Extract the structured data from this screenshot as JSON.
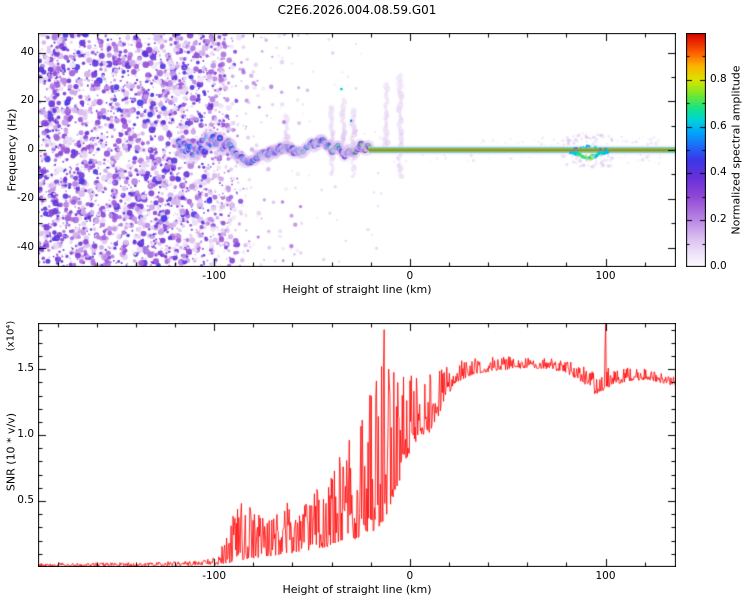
{
  "figure": {
    "title": "C2E6.2026.004.08.59.G01",
    "background": "#ffffff"
  },
  "chart_data": [
    {
      "type": "heatmap",
      "title": "C2E6.2026.004.08.59.G01",
      "xlabel": "Height of straight line (km)",
      "ylabel": "Frequency (Hz)",
      "xlim": [
        -190,
        136
      ],
      "ylim": [
        -48,
        48
      ],
      "xticks": [
        -100,
        0,
        100
      ],
      "x_minor_step": 20,
      "yticks": [
        -40,
        -20,
        0,
        20,
        40
      ],
      "y_minor_step": 10,
      "colorbar": {
        "label": "Normalized spectral amplitude",
        "ticks": [
          "0.0",
          "0.2",
          "0.4",
          "0.6",
          "0.8"
        ],
        "tick_values": [
          0,
          0.2,
          0.4,
          0.6,
          0.8
        ],
        "range": [
          0,
          1
        ]
      },
      "colormap_stops": [
        [
          0,
          252,
          250,
          254
        ],
        [
          0.05,
          240,
          230,
          249
        ],
        [
          0.12,
          219,
          192,
          240
        ],
        [
          0.2,
          186,
          135,
          228
        ],
        [
          0.3,
          144,
          72,
          214
        ],
        [
          0.38,
          104,
          48,
          216
        ],
        [
          0.46,
          58,
          56,
          232
        ],
        [
          0.52,
          28,
          110,
          248
        ],
        [
          0.58,
          0,
          170,
          250
        ],
        [
          0.63,
          0,
          212,
          216
        ],
        [
          0.68,
          24,
          228,
          132
        ],
        [
          0.74,
          120,
          232,
          40
        ],
        [
          0.8,
          220,
          228,
          0
        ],
        [
          0.86,
          252,
          180,
          0
        ],
        [
          0.92,
          252,
          92,
          0
        ],
        [
          1,
          216,
          0,
          0
        ]
      ],
      "content": {
        "description": "Radio-occultation sliding spectrogram: broadband purple speckle noise fills all frequencies for heights below about -100 km, a wandering blue/cyan/green carrier trace near 0 Hz runs from about -115 km to -20 km, and a locked narrow signal line (red core with green sidebands and purple fringe) sits at 0 Hz from -20 km to the right edge, with a small green/yellow disturbance near 82-100 km and faint purple plumes above the trace.",
        "noise_field": {
          "x_range": [
            -190,
            -102
          ],
          "fade_to": -86,
          "sparse_to": -52,
          "value_range": [
            0.04,
            0.46
          ]
        },
        "carrier_trace": {
          "x_range": [
            -118,
            -20
          ],
          "freq_band_hz": [
            -6.5,
            6.5
          ],
          "value_range": [
            0.4,
            0.78
          ]
        },
        "locked_signal": {
          "x_range": [
            -20,
            136
          ],
          "freq_hz": 0,
          "core_value": 0.95,
          "sideband_value": 0.68,
          "disturbance_x": [
            82,
            100
          ]
        },
        "plumes_x_km": [
          -63,
          -40,
          -34,
          -29,
          -12,
          -5
        ]
      }
    },
    {
      "type": "line",
      "xlabel": "Height of straight line (km)",
      "ylabel": "SNR (10 * v/v)",
      "scale_label": "(x10⁴)",
      "xlim": [
        -190,
        136
      ],
      "ylim": [
        0,
        1.85
      ],
      "xticks": [
        -100,
        0,
        100
      ],
      "x_minor_step": 20,
      "yticks": [
        0.5,
        1.0,
        1.5
      ],
      "ytick_labels": [
        "0.5",
        "1.0",
        "1.5"
      ],
      "y_minor_step": 0.1,
      "color": "#ff0000",
      "envelope_x_lo_hi": [
        [
          -190,
          0.005,
          0.03
        ],
        [
          -140,
          0.008,
          0.035
        ],
        [
          -112,
          0.01,
          0.045
        ],
        [
          -103,
          0.015,
          0.06
        ],
        [
          -97,
          0.02,
          0.12
        ],
        [
          -92,
          0.03,
          0.3
        ],
        [
          -88,
          0.05,
          0.55
        ],
        [
          -83,
          0.06,
          0.48
        ],
        [
          -78,
          0.07,
          0.42
        ],
        [
          -73,
          0.08,
          0.36
        ],
        [
          -68,
          0.09,
          0.42
        ],
        [
          -63,
          0.1,
          0.52
        ],
        [
          -58,
          0.11,
          0.55
        ],
        [
          -53,
          0.12,
          0.48
        ],
        [
          -48,
          0.13,
          0.6
        ],
        [
          -43,
          0.15,
          0.62
        ],
        [
          -38,
          0.17,
          0.78
        ],
        [
          -33,
          0.19,
          0.92
        ],
        [
          -28,
          0.21,
          1.05
        ],
        [
          -23,
          0.24,
          1.25
        ],
        [
          -18,
          0.28,
          1.45
        ],
        [
          -14,
          0.33,
          1.62
        ],
        [
          -10,
          0.45,
          1.5
        ],
        [
          -6,
          0.62,
          1.45
        ],
        [
          -2,
          0.8,
          1.48
        ],
        [
          2,
          0.92,
          1.45
        ],
        [
          6,
          1.0,
          1.42
        ],
        [
          10,
          1.02,
          1.46
        ],
        [
          14,
          1.12,
          1.5
        ],
        [
          18,
          1.28,
          1.54
        ],
        [
          24,
          1.4,
          1.56
        ],
        [
          32,
          1.46,
          1.58
        ],
        [
          45,
          1.49,
          1.6
        ],
        [
          60,
          1.51,
          1.59
        ],
        [
          72,
          1.5,
          1.58
        ],
        [
          82,
          1.45,
          1.56
        ],
        [
          90,
          1.38,
          1.52
        ],
        [
          95,
          1.3,
          1.46
        ],
        [
          99,
          1.34,
          1.5
        ],
        [
          104,
          1.38,
          1.52
        ],
        [
          112,
          1.41,
          1.51
        ],
        [
          122,
          1.42,
          1.5
        ],
        [
          130,
          1.39,
          1.47
        ],
        [
          136,
          1.37,
          1.45
        ]
      ],
      "spikes": [
        [
          -13,
          1.8
        ],
        [
          100,
          1.84
        ]
      ]
    }
  ]
}
